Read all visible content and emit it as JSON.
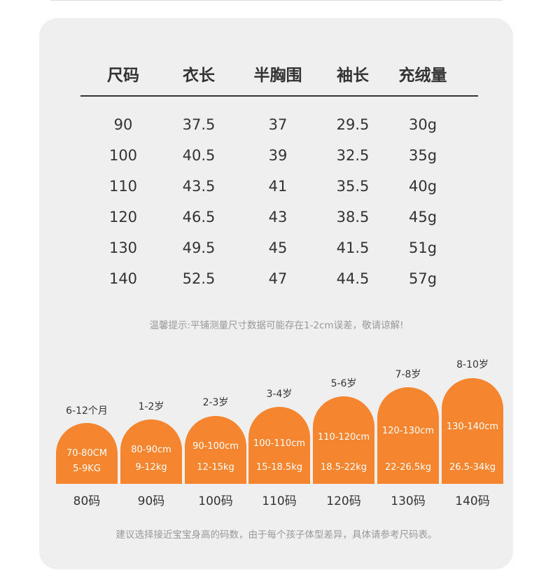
{
  "table": {
    "headers": [
      "尺码",
      "衣长",
      "半胸围",
      "袖长",
      "充绒量"
    ],
    "rows": [
      [
        "90",
        "37.5",
        "37",
        "29.5",
        "30g"
      ],
      [
        "100",
        "40.5",
        "39",
        "32.5",
        "35g"
      ],
      [
        "110",
        "43.5",
        "41",
        "35.5",
        "40g"
      ],
      [
        "120",
        "46.5",
        "43",
        "38.5",
        "45g"
      ],
      [
        "130",
        "49.5",
        "45",
        "41.5",
        "51g"
      ],
      [
        "140",
        "52.5",
        "47",
        "44.5",
        "57g"
      ]
    ]
  },
  "note_measure": "温馨提示:平铺测量尺寸数据可能存在1-2cm误差，敬请谅解!",
  "size_guide": [
    {
      "age": "6-12个月",
      "height": "70-80CM",
      "weight": "5-9KG",
      "size": "80码"
    },
    {
      "age": "1-2岁",
      "height": "80-90cm",
      "weight": "9-12kg",
      "size": "90码"
    },
    {
      "age": "2-3岁",
      "height": "90-100cm",
      "weight": "12-15kg",
      "size": "100码"
    },
    {
      "age": "3-4岁",
      "height": "100-110cm",
      "weight": "15-18.5kg",
      "size": "110码"
    },
    {
      "age": "5-6岁",
      "height": "110-120cm",
      "weight": "18.5-22kg",
      "size": "120码"
    },
    {
      "age": "7-8岁",
      "height": "120-130cm",
      "weight": "22-26.5kg",
      "size": "130码"
    },
    {
      "age": "8-10岁",
      "height": "130-140cm",
      "weight": "26.5-34kg",
      "size": "140码"
    }
  ],
  "note_choose": "建议选择接近宝宝身高的码数，由于每个孩子体型差异，具体请参考尺码表。",
  "colors": {
    "accent": "#f5852e",
    "card": "#efefef",
    "text": "#333333",
    "note": "#999999"
  }
}
